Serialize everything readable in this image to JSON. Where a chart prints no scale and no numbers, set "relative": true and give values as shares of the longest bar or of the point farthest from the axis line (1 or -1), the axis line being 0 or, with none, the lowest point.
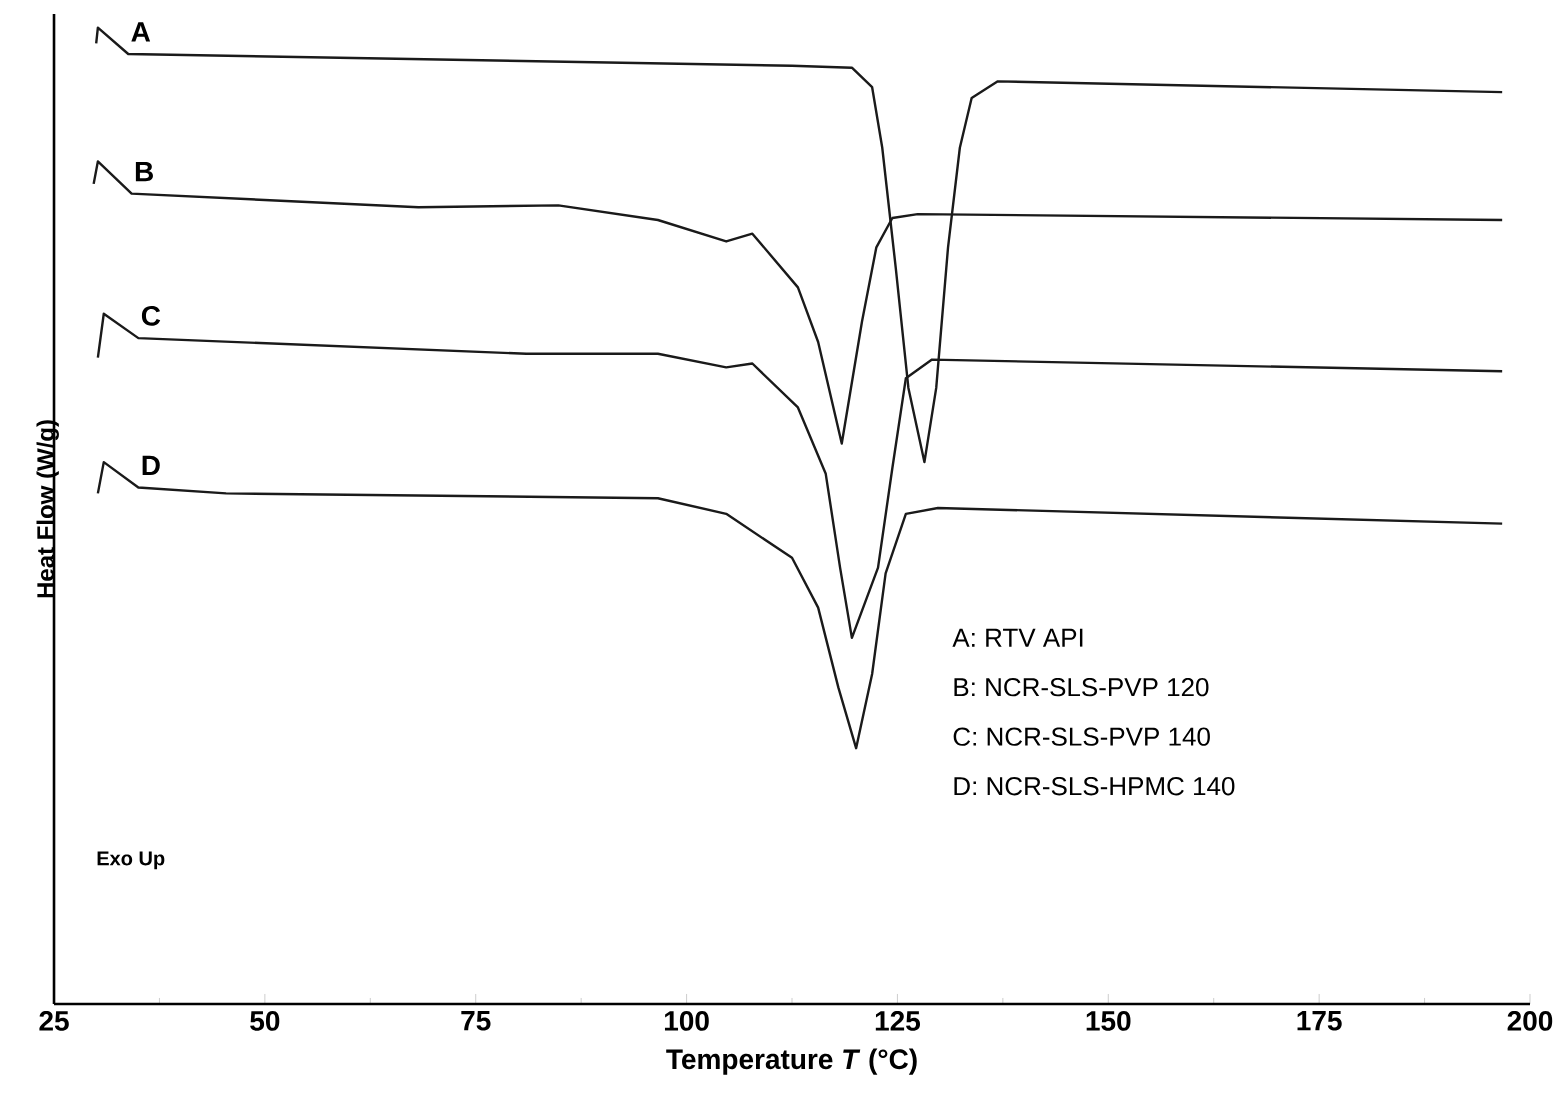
{
  "chart_data": {
    "type": "line",
    "relative": true,
    "xlabel": "Temperature *T* (°C)",
    "ylabel": "Heat Flow (W/g)",
    "xlim": [
      25,
      200
    ],
    "xticks": [
      25,
      50,
      75,
      100,
      125,
      150,
      175,
      200
    ],
    "series": [
      {
        "name": "A",
        "color": "#1a1a1a",
        "x": [
          30.0,
          30.2,
          33.8,
          112.5,
          119.6,
          122.0,
          123.2,
          124.8,
          126.3,
          128.2,
          129.6,
          131.0,
          132.4,
          133.8,
          136.9,
          196.7
        ],
        "values": [
          0.984,
          1.0,
          0.973,
          0.961,
          0.959,
          0.939,
          0.877,
          0.754,
          0.631,
          0.555,
          0.631,
          0.775,
          0.877,
          0.928,
          0.945,
          0.934
        ]
      },
      {
        "name": "B",
        "color": "#1a1a1a",
        "x": [
          29.7,
          30.2,
          34.2,
          68.2,
          84.8,
          96.6,
          104.7,
          107.8,
          113.2,
          115.6,
          118.4,
          120.8,
          122.5,
          124.4,
          127.4,
          196.7
        ],
        "values": [
          0.84,
          0.863,
          0.83,
          0.816,
          0.818,
          0.803,
          0.781,
          0.789,
          0.734,
          0.678,
          0.574,
          0.699,
          0.775,
          0.805,
          0.809,
          0.803
        ]
      },
      {
        "name": "C",
        "color": "#1a1a1a",
        "x": [
          30.2,
          30.9,
          35.0,
          81.0,
          96.6,
          104.7,
          107.8,
          113.2,
          116.5,
          118.2,
          119.6,
          122.7,
          124.4,
          126.0,
          129.1,
          196.7
        ],
        "values": [
          0.662,
          0.707,
          0.682,
          0.666,
          0.666,
          0.652,
          0.656,
          0.611,
          0.543,
          0.447,
          0.375,
          0.447,
          0.549,
          0.641,
          0.66,
          0.648
        ]
      },
      {
        "name": "D",
        "color": "#1a1a1a",
        "x": [
          30.2,
          30.9,
          35.0,
          45.4,
          96.6,
          104.7,
          112.5,
          115.6,
          118.0,
          120.1,
          122.0,
          123.6,
          126.0,
          129.8,
          196.7
        ],
        "values": [
          0.523,
          0.555,
          0.529,
          0.523,
          0.518,
          0.502,
          0.457,
          0.406,
          0.324,
          0.262,
          0.338,
          0.441,
          0.502,
          0.508,
          0.492
        ]
      }
    ],
    "annotations": [
      "A: RTV API",
      "B: NCR-SLS-PVP 120",
      "C: NCR-SLS-PVP 140",
      "D: NCR-SLS-HPMC 140",
      "Exo Up"
    ]
  }
}
